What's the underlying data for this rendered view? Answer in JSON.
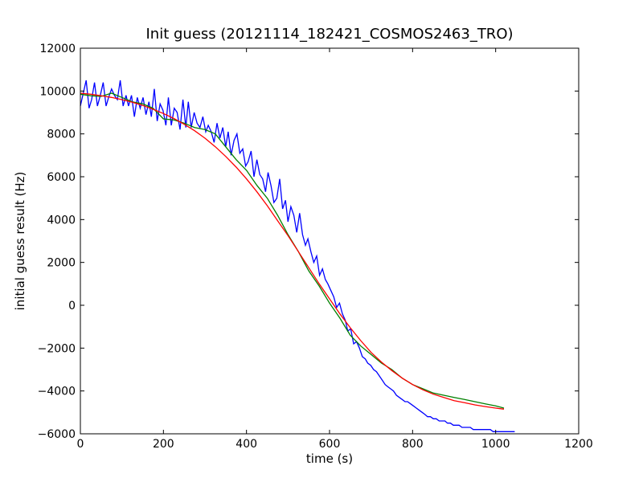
{
  "chart_data": {
    "type": "line",
    "title": "Init guess (20121114_182421_COSMOS2463_TRO)",
    "xlabel": "time (s)",
    "ylabel": "initial guess result (Hz)",
    "xlim": [
      0,
      1200
    ],
    "ylim": [
      -6000,
      12000
    ],
    "xticks": [
      0,
      200,
      400,
      600,
      800,
      1000,
      1200
    ],
    "yticks": [
      -6000,
      -4000,
      -2000,
      0,
      2000,
      4000,
      6000,
      8000,
      10000,
      12000
    ],
    "xtick_labels": [
      "0",
      "200",
      "400",
      "600",
      "800",
      "1000",
      "1200"
    ],
    "ytick_labels": [
      "−6000",
      "−4000",
      "−2000",
      "0",
      "2000",
      "4000",
      "6000",
      "8000",
      "10000",
      "12000"
    ],
    "grid": false,
    "legend": "none",
    "series": [
      {
        "color": "#0000ff",
        "x": [
          0,
          7,
          14,
          21,
          27,
          34,
          41,
          48,
          55,
          62,
          68,
          75,
          82,
          89,
          96,
          103,
          110,
          116,
          123,
          130,
          137,
          144,
          151,
          158,
          165,
          171,
          178,
          185,
          192,
          199,
          206,
          212,
          219,
          226,
          233,
          240,
          247,
          254,
          260,
          267,
          274,
          281,
          288,
          295,
          302,
          308,
          315,
          322,
          329,
          336,
          343,
          350,
          356,
          363,
          370,
          377,
          384,
          391,
          398,
          404,
          411,
          418,
          425,
          432,
          439,
          446,
          452,
          459,
          466,
          473,
          480,
          487,
          494,
          500,
          507,
          514,
          521,
          528,
          535,
          542,
          548,
          555,
          562,
          569,
          576,
          583,
          590,
          596,
          603,
          610,
          617,
          624,
          631,
          638,
          644,
          651,
          658,
          665,
          672,
          679,
          686,
          692,
          699,
          706,
          713,
          720,
          727,
          734,
          740,
          747,
          754,
          761,
          768,
          775,
          782,
          788,
          795,
          802,
          809,
          816,
          823,
          830,
          836,
          843,
          850,
          857,
          864,
          871,
          878,
          884,
          891,
          898,
          905,
          912,
          919,
          926,
          932,
          939,
          946,
          953,
          960,
          967,
          974,
          980,
          987,
          994,
          1001,
          1008,
          1015,
          1020,
          1028,
          1033,
          1038,
          1040,
          1043,
          1046
        ],
        "y": [
          9300,
          9900,
          10500,
          9200,
          9600,
          10400,
          9300,
          9800,
          10400,
          9300,
          9700,
          10100,
          9800,
          9600,
          10500,
          9300,
          9800,
          9300,
          9800,
          8800,
          9700,
          9200,
          9700,
          8900,
          9500,
          8800,
          10100,
          8600,
          9400,
          9100,
          8400,
          9700,
          8400,
          9200,
          9000,
          8200,
          9600,
          8300,
          9500,
          8300,
          9000,
          8500,
          8300,
          8800,
          8100,
          8400,
          8100,
          7600,
          8500,
          7800,
          8300,
          7400,
          8100,
          7000,
          7700,
          8000,
          7100,
          7300,
          6500,
          6700,
          7200,
          6000,
          6800,
          6100,
          5900,
          5300,
          6200,
          5600,
          4800,
          5000,
          5900,
          4500,
          4900,
          3900,
          4600,
          4200,
          3400,
          4300,
          3300,
          2800,
          3100,
          2500,
          2000,
          2300,
          1400,
          1700,
          1200,
          1000,
          700,
          400,
          -100,
          100,
          -400,
          -700,
          -1200,
          -1100,
          -1800,
          -1700,
          -2000,
          -2400,
          -2500,
          -2700,
          -2800,
          -3000,
          -3100,
          -3300,
          -3500,
          -3700,
          -3800,
          -3900,
          -4000,
          -4200,
          -4300,
          -4400,
          -4500,
          -4500,
          -4600,
          -4700,
          -4800,
          -4900,
          -5000,
          -5100,
          -5200,
          -5200,
          -5300,
          -5300,
          -5400,
          -5400,
          -5400,
          -5500,
          -5500,
          -5600,
          -5600,
          -5600,
          -5700,
          -5700,
          -5700,
          -5700,
          -5800,
          -5800,
          -5800,
          -5800,
          -5800,
          -5800,
          -5800,
          -5900,
          -5900,
          -5900,
          -5900,
          -5900,
          -5900,
          -5900,
          -5900,
          -5900,
          -5900,
          -5900
        ]
      },
      {
        "color": "#008000",
        "x": [
          0,
          25,
          50,
          75,
          100,
          125,
          150,
          175,
          200,
          225,
          250,
          275,
          300,
          325,
          350,
          375,
          400,
          425,
          450,
          475,
          500,
          525,
          550,
          575,
          600,
          625,
          650,
          675,
          700,
          725,
          750,
          775,
          800,
          825,
          850,
          875,
          900,
          925,
          950,
          975,
          1000,
          1020
        ],
        "y": [
          9850,
          9780,
          9750,
          9900,
          9700,
          9500,
          9400,
          9200,
          8700,
          8650,
          8500,
          8300,
          8200,
          8000,
          7400,
          6800,
          6300,
          5600,
          5000,
          4200,
          3300,
          2500,
          1600,
          900,
          100,
          -600,
          -1400,
          -1900,
          -2300,
          -2700,
          -3000,
          -3400,
          -3700,
          -3900,
          -4100,
          -4200,
          -4300,
          -4400,
          -4500,
          -4600,
          -4700,
          -4800
        ]
      },
      {
        "color": "#ff0000",
        "x": [
          0,
          25,
          50,
          75,
          100,
          125,
          150,
          175,
          200,
          225,
          250,
          275,
          300,
          325,
          350,
          375,
          400,
          425,
          450,
          475,
          500,
          525,
          550,
          575,
          600,
          625,
          650,
          675,
          700,
          725,
          750,
          775,
          800,
          825,
          850,
          875,
          900,
          925,
          950,
          975,
          1000,
          1020
        ],
        "y": [
          9900,
          9850,
          9780,
          9700,
          9600,
          9480,
          9330,
          9150,
          8950,
          8720,
          8450,
          8150,
          7800,
          7400,
          6950,
          6450,
          5900,
          5300,
          4650,
          3950,
          3250,
          2500,
          1750,
          1000,
          300,
          -400,
          -1050,
          -1650,
          -2200,
          -2650,
          -3050,
          -3400,
          -3700,
          -3950,
          -4150,
          -4300,
          -4450,
          -4550,
          -4650,
          -4730,
          -4800,
          -4850
        ]
      }
    ]
  }
}
